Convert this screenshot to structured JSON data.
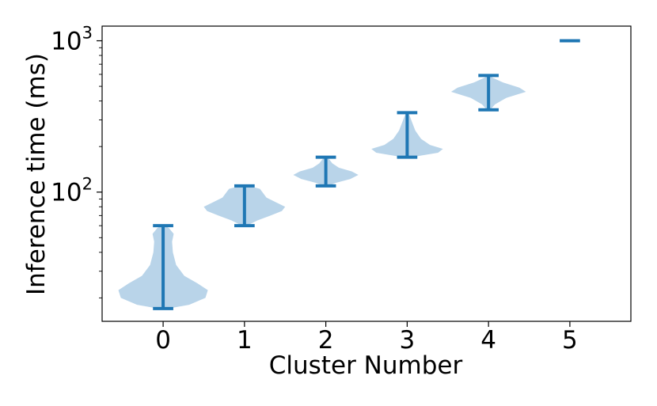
{
  "chart_data": {
    "type": "violin",
    "title": "",
    "xlabel": "Cluster Number",
    "ylabel": "Inference time (ms)",
    "yscale": "log",
    "ylim": [
      14,
      1250
    ],
    "xlim": [
      -0.75,
      5.75
    ],
    "xticks": [
      "0",
      "1",
      "2",
      "3",
      "4",
      "5"
    ],
    "yticks": [
      {
        "value": 100,
        "base": "10",
        "exp": "2"
      },
      {
        "value": 1000,
        "base": "10",
        "exp": "3"
      }
    ],
    "grid": false,
    "legend": "none",
    "colors": {
      "body": "#b9d4e9",
      "line": "#1f77b4",
      "frame": "#000000"
    },
    "series": [
      {
        "category": "0",
        "min": 17,
        "max": 60,
        "profile": [
          [
            17,
            0.06
          ],
          [
            18,
            0.32
          ],
          [
            20,
            0.52
          ],
          [
            22.5,
            0.55
          ],
          [
            25,
            0.42
          ],
          [
            28,
            0.26
          ],
          [
            33,
            0.16
          ],
          [
            40,
            0.12
          ],
          [
            47,
            0.11
          ],
          [
            53,
            0.13
          ],
          [
            58,
            0.07
          ],
          [
            60,
            0.02
          ]
        ]
      },
      {
        "category": "1",
        "min": 60,
        "max": 110,
        "profile": [
          [
            60,
            0.03
          ],
          [
            65,
            0.16
          ],
          [
            70,
            0.32
          ],
          [
            75,
            0.46
          ],
          [
            80,
            0.5
          ],
          [
            85,
            0.4
          ],
          [
            92,
            0.27
          ],
          [
            100,
            0.22
          ],
          [
            105,
            0.19
          ],
          [
            110,
            0.05
          ]
        ]
      },
      {
        "category": "2",
        "min": 110,
        "max": 170,
        "profile": [
          [
            110,
            0.03
          ],
          [
            115,
            0.12
          ],
          [
            122,
            0.3
          ],
          [
            130,
            0.4
          ],
          [
            137,
            0.32
          ],
          [
            145,
            0.16
          ],
          [
            155,
            0.08
          ],
          [
            165,
            0.04
          ],
          [
            170,
            0.02
          ]
        ]
      },
      {
        "category": "3",
        "min": 170,
        "max": 335,
        "profile": [
          [
            170,
            0.05
          ],
          [
            182,
            0.38
          ],
          [
            193,
            0.44
          ],
          [
            205,
            0.28
          ],
          [
            225,
            0.17
          ],
          [
            255,
            0.1
          ],
          [
            290,
            0.06
          ],
          [
            320,
            0.03
          ],
          [
            335,
            0.01
          ]
        ]
      },
      {
        "category": "4",
        "min": 350,
        "max": 590,
        "profile": [
          [
            350,
            0.02
          ],
          [
            380,
            0.08
          ],
          [
            420,
            0.22
          ],
          [
            460,
            0.46
          ],
          [
            490,
            0.38
          ],
          [
            530,
            0.18
          ],
          [
            570,
            0.05
          ],
          [
            590,
            0.02
          ]
        ]
      },
      {
        "category": "5",
        "min": 1000,
        "max": 1000,
        "profile": []
      }
    ]
  }
}
